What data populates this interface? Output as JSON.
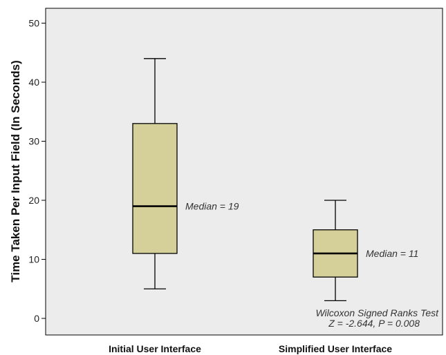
{
  "chart_data": {
    "type": "box",
    "title": "",
    "xlabel": "",
    "ylabel": "Time Taken Per Input Field (In Seconds)",
    "ylim": [
      0,
      50
    ],
    "yticks": [
      0,
      10,
      20,
      30,
      40,
      50
    ],
    "grid": false,
    "categories": [
      "Initial User Interface",
      "Simplified User Interface"
    ],
    "boxes": [
      {
        "category": "Initial User Interface",
        "min": 5,
        "q1": 11,
        "median": 19,
        "q3": 33,
        "max": 44,
        "annotation": "Median = 19"
      },
      {
        "category": "Simplified User Interface",
        "min": 3,
        "q1": 7,
        "median": 11,
        "q3": 15,
        "max": 20,
        "annotation": "Median = 11"
      }
    ],
    "test_annotation": {
      "line1": "Wilcoxon Signed Ranks Test",
      "line2": "Z = -2.644, P = 0.008"
    },
    "colors": {
      "plot_background": "#ececec",
      "box_fill": "#d5cf99",
      "stroke": "#000000"
    }
  }
}
